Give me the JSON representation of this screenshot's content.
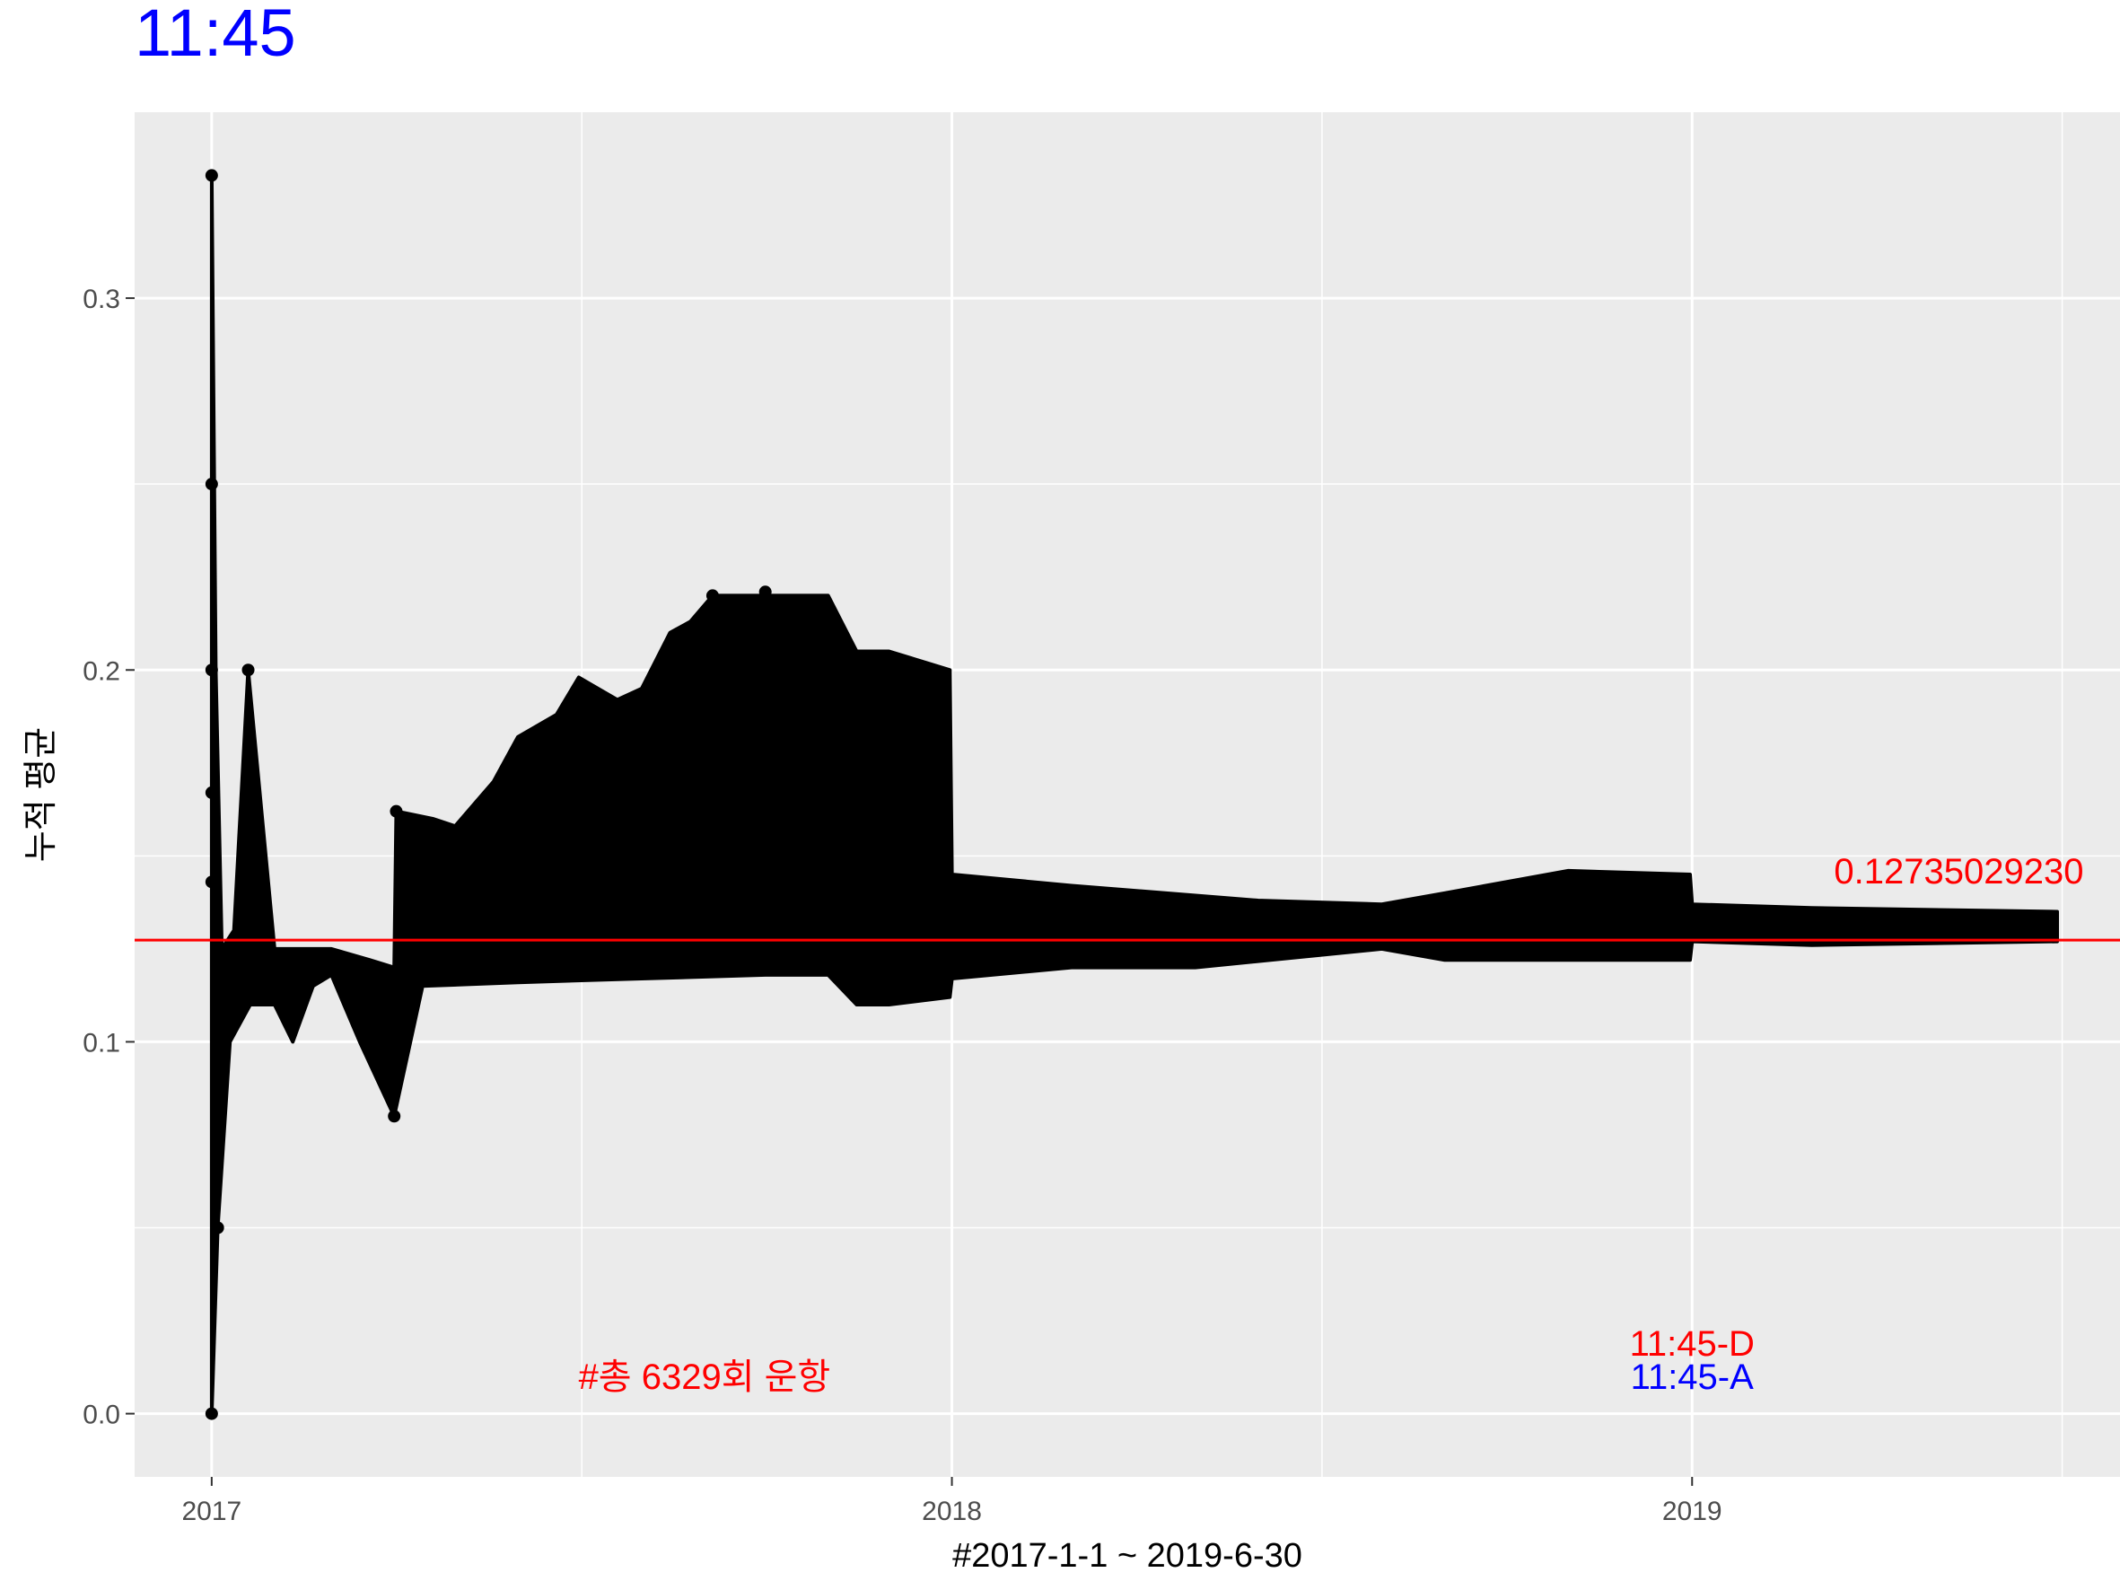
{
  "chart_data": {
    "type": "line",
    "title": "11:45",
    "title_color": "#0000ff",
    "xlabel": "#2017-1-1 ~ 2019-6-30",
    "ylabel": "누적 평균",
    "xlim": [
      "2016-11-24",
      "2019-07-31"
    ],
    "ylim": [
      -0.017,
      0.35
    ],
    "x_ticks": [
      "2017",
      "2018",
      "2019"
    ],
    "y_ticks": [
      "0.0",
      "0.1",
      "0.2",
      "0.3"
    ],
    "y_tick_values": [
      0.0,
      0.1,
      0.2,
      0.3
    ],
    "x_tick_dates": [
      "2017-01-01",
      "2018-01-01",
      "2019-01-01"
    ],
    "grid": true,
    "panel_color": "#ebebeb",
    "grid_color": "#ffffff",
    "series": [
      {
        "color": "#000000",
        "upper": [
          [
            "2017-01-01",
            0.333
          ],
          [
            "2017-01-03",
            0.2
          ],
          [
            "2017-01-06",
            0.125
          ],
          [
            "2017-01-12",
            0.13
          ],
          [
            "2017-01-19",
            0.2
          ],
          [
            "2017-02-01",
            0.125
          ],
          [
            "2017-03-01",
            0.125
          ],
          [
            "2017-03-20",
            0.122
          ],
          [
            "2017-04-01",
            0.12
          ],
          [
            "2017-04-02",
            0.162
          ],
          [
            "2017-04-20",
            0.16
          ],
          [
            "2017-05-01",
            0.158
          ],
          [
            "2017-05-20",
            0.17
          ],
          [
            "2017-06-01",
            0.182
          ],
          [
            "2017-06-20",
            0.188
          ],
          [
            "2017-07-01",
            0.198
          ],
          [
            "2017-07-20",
            0.192
          ],
          [
            "2017-08-01",
            0.195
          ],
          [
            "2017-08-15",
            0.21
          ],
          [
            "2017-08-25",
            0.213
          ],
          [
            "2017-09-05",
            0.22
          ],
          [
            "2017-10-01",
            0.22
          ],
          [
            "2017-11-01",
            0.22
          ],
          [
            "2017-11-15",
            0.205
          ],
          [
            "2017-12-01",
            0.205
          ],
          [
            "2017-12-31",
            0.2
          ],
          [
            "2018-01-01",
            0.145
          ],
          [
            "2018-03-01",
            0.142
          ],
          [
            "2018-06-01",
            0.138
          ],
          [
            "2018-08-01",
            0.137
          ],
          [
            "2018-09-01",
            0.14
          ],
          [
            "2018-11-01",
            0.146
          ],
          [
            "2018-12-31",
            0.145
          ],
          [
            "2019-01-01",
            0.137
          ],
          [
            "2019-03-01",
            0.136
          ],
          [
            "2019-06-30",
            0.135
          ]
        ],
        "lower": [
          [
            "2017-01-01",
            0.0
          ],
          [
            "2017-01-04",
            0.05
          ],
          [
            "2017-01-10",
            0.1
          ],
          [
            "2017-01-20",
            0.11
          ],
          [
            "2017-02-01",
            0.11
          ],
          [
            "2017-02-10",
            0.1
          ],
          [
            "2017-02-20",
            0.115
          ],
          [
            "2017-03-01",
            0.118
          ],
          [
            "2017-03-15",
            0.1
          ],
          [
            "2017-04-01",
            0.08
          ],
          [
            "2017-04-15",
            0.115
          ],
          [
            "2017-06-01",
            0.116
          ],
          [
            "2017-08-01",
            0.117
          ],
          [
            "2017-10-01",
            0.118
          ],
          [
            "2017-11-01",
            0.118
          ],
          [
            "2017-11-15",
            0.11
          ],
          [
            "2017-12-01",
            0.11
          ],
          [
            "2017-12-31",
            0.112
          ],
          [
            "2018-01-01",
            0.117
          ],
          [
            "2018-03-01",
            0.12
          ],
          [
            "2018-05-01",
            0.12
          ],
          [
            "2018-08-01",
            0.125
          ],
          [
            "2018-09-01",
            0.122
          ],
          [
            "2018-12-31",
            0.122
          ],
          [
            "2019-01-01",
            0.127
          ],
          [
            "2019-03-01",
            0.126
          ],
          [
            "2019-06-30",
            0.127
          ]
        ],
        "points": [
          [
            "2017-01-01",
            0.333
          ],
          [
            "2017-01-01",
            0.25
          ],
          [
            "2017-01-01",
            0.2
          ],
          [
            "2017-01-01",
            0.167
          ],
          [
            "2017-01-01",
            0.143
          ],
          [
            "2017-01-01",
            0.0
          ],
          [
            "2017-01-19",
            0.2
          ],
          [
            "2017-04-02",
            0.162
          ],
          [
            "2017-09-05",
            0.22
          ],
          [
            "2017-10-01",
            0.221
          ],
          [
            "2017-04-01",
            0.08
          ],
          [
            "2017-01-04",
            0.05
          ]
        ]
      }
    ],
    "hline": {
      "value": 0.1273502923,
      "color": "#ff0000"
    },
    "annotations": [
      {
        "text": "0.12735029230",
        "x": "2019-03-12",
        "y": 0.146,
        "color": "#ff0000"
      },
      {
        "text": "#총 6329회 운항",
        "x": "2017-09-01",
        "y": 0.01,
        "color": "#ff0000"
      },
      {
        "text": "11:45-D",
        "x": "2019-01-01",
        "y": 0.019,
        "color": "#ff0000"
      },
      {
        "text": "11:45-A",
        "x": "2019-01-01",
        "y": 0.01,
        "color": "#0000ff"
      }
    ]
  }
}
